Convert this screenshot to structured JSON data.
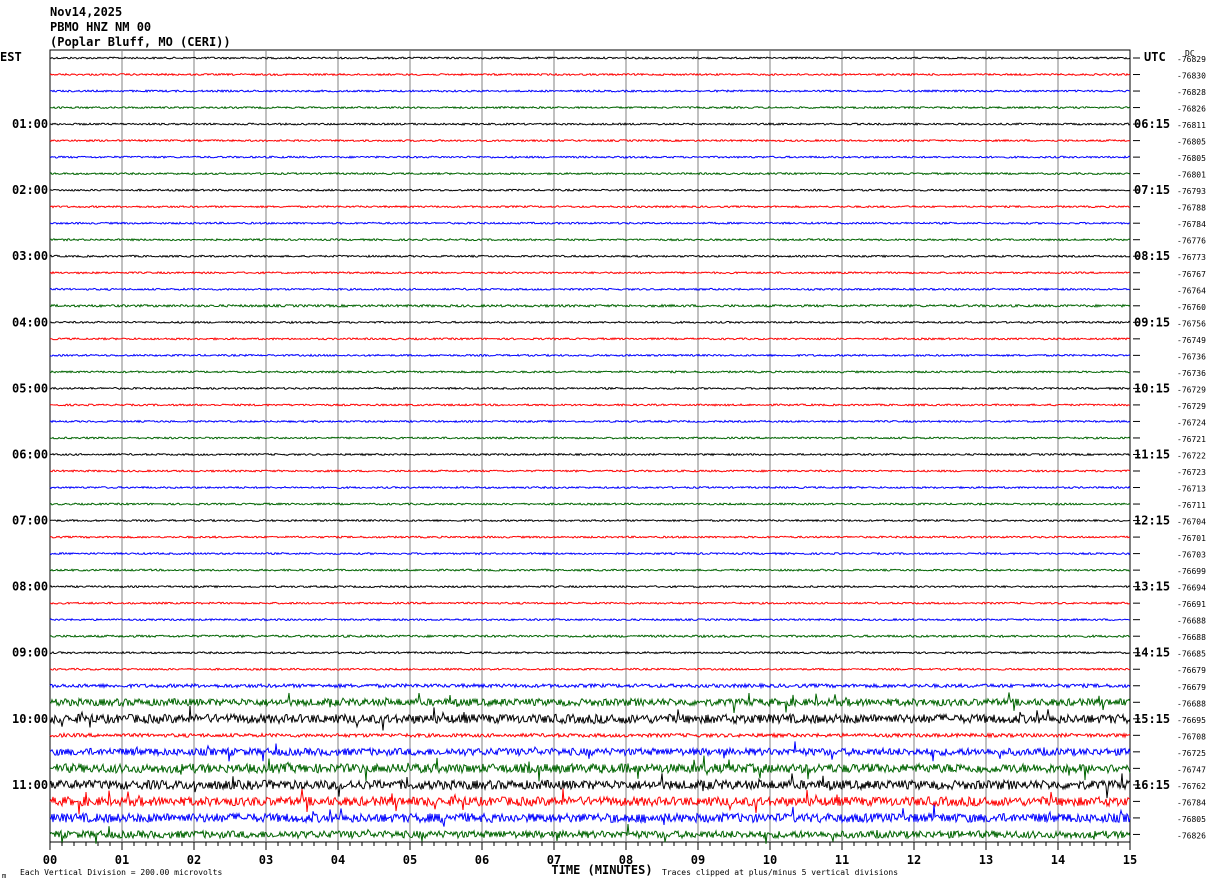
{
  "header": {
    "date": "Nov14,2025",
    "station": "PBMO HNZ NM 00",
    "location": "(Poplar Bluff, MO (CERI))"
  },
  "labels": {
    "left_tz": "EST",
    "right_tz": "UTC",
    "dc": "DC",
    "x_title": "TIME (MINUTES)",
    "footer_left": "Each Vertical Division =  200.00 microvolts",
    "footer_right": "Traces clipped at plus/minus 5 vertical divisions",
    "corner_mark": "m"
  },
  "colors": {
    "trace_cycle": [
      "#000000",
      "#ff0000",
      "#0000ff",
      "#006400"
    ],
    "grid": "#808080"
  },
  "chart_data": {
    "type": "line",
    "title": "PBMO HNZ NM 00",
    "xlabel": "TIME (MINUTES)",
    "x_ticks": [
      "00",
      "01",
      "02",
      "03",
      "04",
      "05",
      "06",
      "07",
      "08",
      "09",
      "10",
      "11",
      "12",
      "13",
      "14",
      "15"
    ],
    "x_range": [
      0,
      15
    ],
    "rows_per_hour": 4,
    "left_hour_labels": [
      "01:00",
      "02:00",
      "03:00",
      "04:00",
      "05:00",
      "06:00",
      "07:00",
      "08:00",
      "09:00",
      "10:00",
      "11:00"
    ],
    "right_hour_labels": [
      "06:15",
      "07:15",
      "08:15",
      "09:15",
      "10:15",
      "11:15",
      "12:15",
      "13:15",
      "14:15",
      "15:15",
      "16:15"
    ],
    "first_labeled_row": 4,
    "dc_offsets": [
      "-76829",
      "-76830",
      "-76828",
      "-76826",
      "-76811",
      "-76805",
      "-76805",
      "-76801",
      "-76793",
      "-76788",
      "-76784",
      "-76776",
      "-76773",
      "-76767",
      "-76764",
      "-76760",
      "-76756",
      "-76749",
      "-76736",
      "-76736",
      "-76729",
      "-76729",
      "-76724",
      "-76721",
      "-76722",
      "-76723",
      "-76713",
      "-76711",
      "-76704",
      "-76701",
      "-76703",
      "-76699",
      "-76694",
      "-76691",
      "-76688",
      "-76688",
      "-76685",
      "-76679",
      "-76679",
      "-76688",
      "-76695",
      "-76708",
      "-76725",
      "-76747",
      "-76762",
      "-76784",
      "-76805",
      "-76826"
    ],
    "trace_activity": [
      1,
      1,
      1,
      1,
      1,
      1,
      1,
      1,
      1,
      1,
      1,
      1,
      1,
      1,
      1,
      1.3,
      1,
      1,
      1,
      1,
      1,
      1,
      1,
      1,
      1,
      1,
      1,
      1,
      1,
      1,
      1,
      1,
      1,
      1,
      1,
      1.2,
      1,
      1,
      2,
      4,
      5,
      2,
      4,
      5,
      5,
      5,
      5,
      4
    ]
  }
}
